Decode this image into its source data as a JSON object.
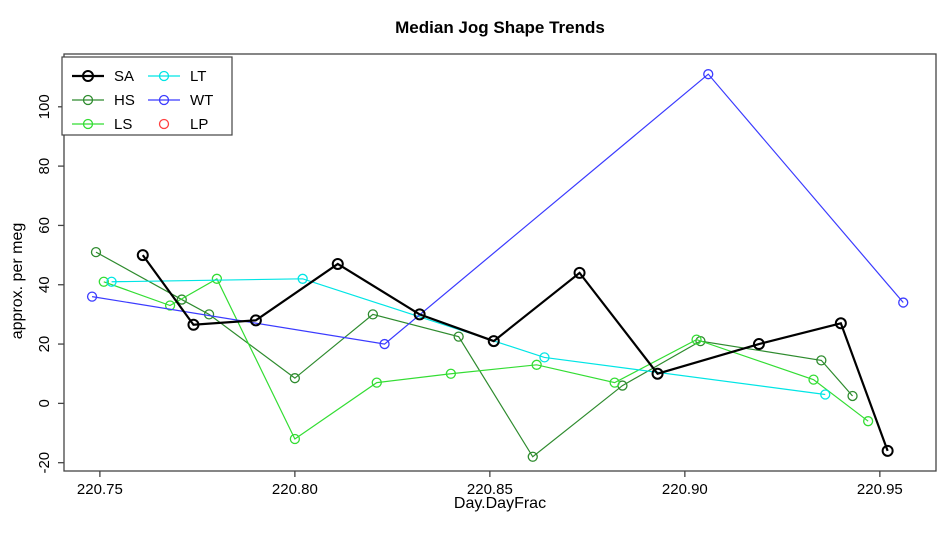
{
  "figure": {
    "title": "Median Jog Shape Trends",
    "x_axis_label": "Day.DayFrac",
    "y_axis_label": "approx. per meg"
  },
  "chart_data": {
    "type": "line",
    "title": "Median Jog Shape Trends",
    "xlabel": "Day.DayFrac",
    "ylabel": "approx. per meg",
    "grid": false,
    "legend_position": "top-left",
    "legend_columns": 2,
    "xlim": [
      220.7408,
      220.9644
    ],
    "ylim": [
      -22.8,
      117.8
    ],
    "x_ticks": {
      "values": [
        220.75,
        220.8,
        220.85,
        220.9,
        220.95
      ],
      "labels": [
        "220.75",
        "220.80",
        "220.85",
        "220.90",
        "220.95"
      ]
    },
    "y_ticks": {
      "values": [
        -20,
        0,
        20,
        40,
        60,
        80,
        100
      ],
      "labels": [
        "-20",
        "0",
        "20",
        "40",
        "60",
        "80",
        "100"
      ]
    },
    "series": [
      {
        "name": "SA",
        "color": "#000000",
        "line_width": 2.2,
        "marker": "open-circle",
        "marker_radius": 5,
        "marker_stroke": 2,
        "has_line": true,
        "x": [
          220.761,
          220.774,
          220.79,
          220.811,
          220.832,
          220.851,
          220.873,
          220.893,
          220.919,
          220.94,
          220.952
        ],
        "y": [
          50,
          26.5,
          28,
          47,
          30,
          21,
          44,
          10,
          20,
          27,
          -16
        ]
      },
      {
        "name": "HS",
        "color": "#2E8B2E",
        "line_width": 1.2,
        "marker": "open-circle",
        "marker_radius": 4.5,
        "marker_stroke": 1.3,
        "has_line": true,
        "x": [
          220.749,
          220.771,
          220.778,
          220.8,
          220.82,
          220.842,
          220.861,
          220.884,
          220.904,
          220.935,
          220.943
        ],
        "y": [
          51,
          35,
          30,
          8.5,
          30,
          22.5,
          -18,
          6,
          21,
          14.5,
          2.5
        ]
      },
      {
        "name": "LS",
        "color": "#33DD33",
        "line_width": 1.2,
        "marker": "open-circle",
        "marker_radius": 4.5,
        "marker_stroke": 1.3,
        "has_line": true,
        "x": [
          220.751,
          220.768,
          220.78,
          220.8,
          220.821,
          220.84,
          220.862,
          220.882,
          220.903,
          220.933,
          220.947
        ],
        "y": [
          41,
          33,
          42,
          -12,
          7,
          10,
          13,
          7,
          21.5,
          8,
          -6
        ]
      },
      {
        "name": "LT",
        "color": "#00E5E5",
        "line_width": 1.2,
        "marker": "open-circle",
        "marker_radius": 4.5,
        "marker_stroke": 1.3,
        "has_line": true,
        "x": [
          220.753,
          220.802,
          220.864,
          220.936
        ],
        "y": [
          41,
          42,
          15.5,
          3
        ]
      },
      {
        "name": "WT",
        "color": "#3B3BFF",
        "line_width": 1.2,
        "marker": "open-circle",
        "marker_radius": 4.5,
        "marker_stroke": 1.3,
        "has_line": true,
        "x": [
          220.748,
          220.823,
          220.906,
          220.956
        ],
        "y": [
          36,
          20,
          111,
          34
        ]
      },
      {
        "name": "LP",
        "color": "#FF4040",
        "line_width": 1.2,
        "marker": "open-circle",
        "marker_radius": 4.5,
        "marker_stroke": 1.3,
        "has_line": false,
        "x": [],
        "y": []
      }
    ]
  }
}
